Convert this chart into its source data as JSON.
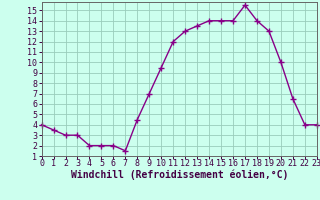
{
  "x": [
    0,
    1,
    2,
    3,
    4,
    5,
    6,
    7,
    8,
    9,
    10,
    11,
    12,
    13,
    14,
    15,
    16,
    17,
    18,
    19,
    20,
    21,
    22,
    23
  ],
  "y": [
    4,
    3.5,
    3,
    3,
    2,
    2,
    2,
    1.5,
    4.5,
    7,
    9.5,
    12,
    13,
    13.5,
    14,
    14,
    14,
    15.5,
    14,
    13,
    10,
    6.5,
    4,
    4
  ],
  "line_color": "#880088",
  "marker": "+",
  "marker_size": 4,
  "marker_linewidth": 1.0,
  "background_color": "#ccffee",
  "grid_color": "#99ccbb",
  "xlabel": "Windchill (Refroidissement éolien,°C)",
  "xlabel_fontsize": 7,
  "xlim": [
    0,
    23
  ],
  "ylim": [
    1,
    15.8
  ],
  "yticks": [
    1,
    2,
    3,
    4,
    5,
    6,
    7,
    8,
    9,
    10,
    11,
    12,
    13,
    14,
    15
  ],
  "xticks": [
    0,
    1,
    2,
    3,
    4,
    5,
    6,
    7,
    8,
    9,
    10,
    11,
    12,
    13,
    14,
    15,
    16,
    17,
    18,
    19,
    20,
    21,
    22,
    23
  ],
  "tick_fontsize": 6,
  "line_width": 1.0,
  "spine_color": "#666666",
  "tick_color": "#440044",
  "xlabel_color": "#440044"
}
